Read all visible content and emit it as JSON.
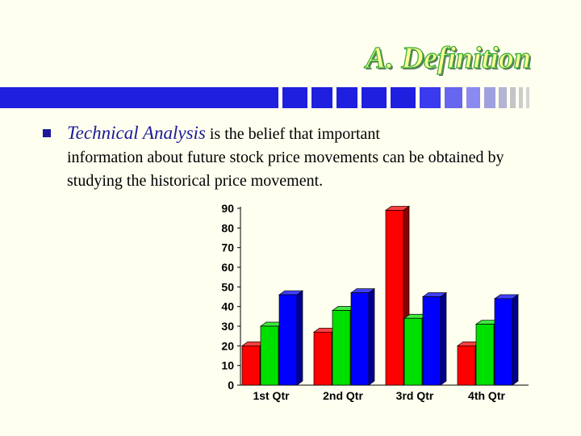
{
  "slide": {
    "title": "A. Definition",
    "bullet": {
      "emphasis": "Technical Analysis",
      "text_line1": " is the belief that important",
      "text_rest": "information about future stock price movements can be obtained by studying the historical price movement."
    }
  },
  "colors": {
    "title_fill": "#ffff99",
    "title_outline": "#33aa33",
    "strip_blue": "#1f1fe0",
    "emphasis": "#1a1a99"
  },
  "chart_data": {
    "type": "bar",
    "categories": [
      "1st Qtr",
      "2nd Qtr",
      "3rd Qtr",
      "4th Qtr"
    ],
    "series": [
      {
        "color": "#ff0000",
        "values": [
          20,
          27,
          89,
          20
        ]
      },
      {
        "color": "#00e000",
        "values": [
          30,
          38,
          34,
          31
        ]
      },
      {
        "color": "#0000ff",
        "values": [
          46,
          47,
          45,
          44
        ]
      }
    ],
    "yticks": [
      "0",
      "10",
      "20",
      "30",
      "40",
      "50",
      "60",
      "70",
      "80",
      "90"
    ],
    "ylim": [
      0,
      90
    ],
    "grid": false,
    "style": "3d"
  }
}
